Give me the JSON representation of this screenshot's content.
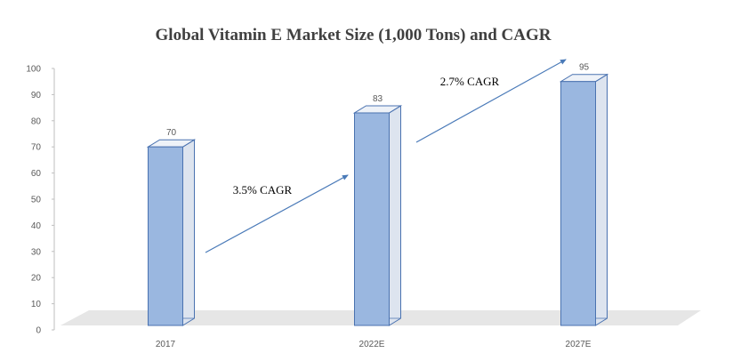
{
  "chart_data": {
    "type": "bar",
    "title": "Global Vitamin E Market Size (1,000 Tons) and CAGR",
    "categories": [
      "2017",
      "2022E",
      "2027E"
    ],
    "values": [
      70,
      83,
      95
    ],
    "ylim": [
      0,
      100
    ],
    "yticks": [
      0,
      10,
      20,
      30,
      40,
      50,
      60,
      70,
      80,
      90,
      100
    ],
    "data_labels": [
      "70",
      "83",
      "95"
    ],
    "annotations": [
      {
        "text": "3.5% CAGR",
        "from": "2017",
        "to": "2022E"
      },
      {
        "text": "2.7% CAGR",
        "from": "2022E",
        "to": "2027E"
      }
    ],
    "grid": false,
    "legend": "none",
    "colors": {
      "bar_front": "#9ab7e0",
      "bar_edge": "#4a72b0",
      "bar_side": "#dde4ef",
      "floor": "#e6e6e6",
      "arrow": "#4a7ab8"
    }
  }
}
